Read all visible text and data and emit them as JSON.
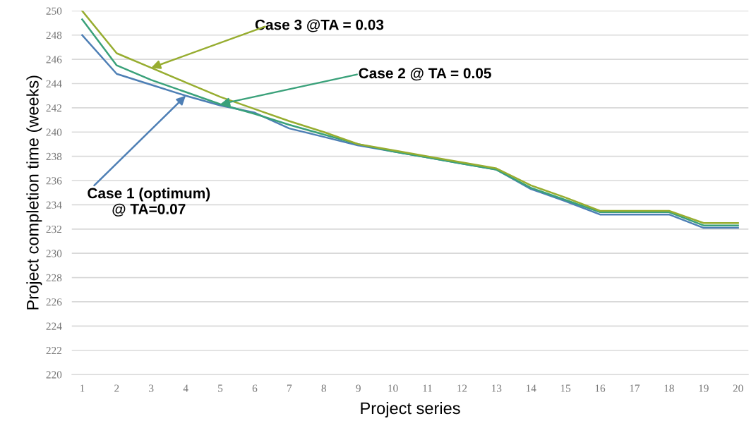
{
  "chart_data": {
    "type": "line",
    "xlabel": "Project series",
    "ylabel": "Project completion time (weeks)",
    "categories": [
      "1",
      "2",
      "3",
      "4",
      "5",
      "6",
      "7",
      "8",
      "9",
      "10",
      "11",
      "12",
      "13",
      "14",
      "15",
      "16",
      "17",
      "18",
      "19",
      "20"
    ],
    "series": [
      {
        "color": "#4e7fb5",
        "values": [
          248,
          244.8,
          243.9,
          243.0,
          242.2,
          241.6,
          240.3,
          239.6,
          238.9,
          238.4,
          237.9,
          237.4,
          236.9,
          235.3,
          234.3,
          233.2,
          233.2,
          233.2,
          232.1,
          232.1
        ]
      },
      {
        "color": "#3aa17a",
        "values": [
          249.3,
          245.5,
          244.3,
          243.3,
          242.3,
          241.5,
          240.6,
          239.8,
          239.0,
          238.4,
          237.9,
          237.4,
          236.9,
          235.4,
          234.4,
          233.4,
          233.4,
          233.4,
          232.3,
          232.3
        ]
      },
      {
        "color": "#97ad30",
        "values": [
          250,
          246.5,
          245.3,
          244.1,
          242.9,
          241.9,
          240.9,
          240.0,
          239.0,
          238.5,
          238.0,
          237.5,
          237.0,
          235.6,
          234.6,
          233.5,
          233.5,
          233.5,
          232.5,
          232.5
        ]
      }
    ],
    "ylim": [
      220,
      250
    ],
    "yticks": [
      220,
      222,
      224,
      226,
      228,
      230,
      232,
      234,
      236,
      238,
      240,
      242,
      244,
      246,
      248,
      250
    ],
    "grid": "y",
    "marker": "none",
    "line_style": "solid",
    "annotations": [
      {
        "text": "Case 1 (optimum)\n@ TA=0.07",
        "x": "4",
        "y": 243.0
      },
      {
        "text": "Case 2 @ TA = 0.05",
        "x": "5",
        "y": 242.3
      },
      {
        "text": "Case 3 @TA = 0.03",
        "x": "3",
        "y": 245.3
      }
    ]
  }
}
